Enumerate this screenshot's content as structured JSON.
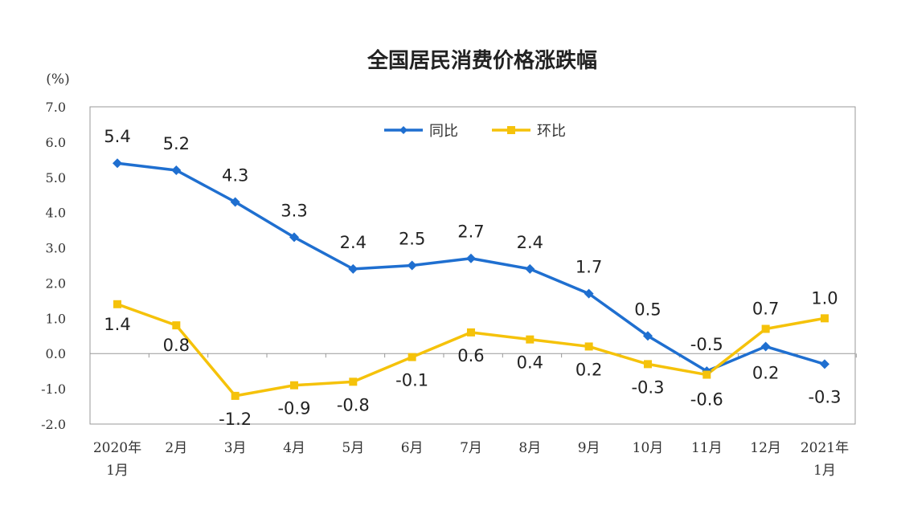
{
  "chart_data": {
    "type": "line",
    "title": "全国居民消费价格涨跌幅",
    "unit": "(%)",
    "ylim": [
      -2.0,
      7.0
    ],
    "yticks": [
      "7.0",
      "6.0",
      "5.0",
      "4.0",
      "3.0",
      "2.0",
      "1.0",
      "0.0",
      "-1.0",
      "-2.0"
    ],
    "categories": [
      [
        "2020年",
        "1月"
      ],
      [
        "2月"
      ],
      [
        "3月"
      ],
      [
        "4月"
      ],
      [
        "5月"
      ],
      [
        "6月"
      ],
      [
        "7月"
      ],
      [
        "8月"
      ],
      [
        "9月"
      ],
      [
        "10月"
      ],
      [
        "11月"
      ],
      [
        "12月"
      ],
      [
        "2021年",
        "1月"
      ]
    ],
    "legend_position": "top-center",
    "grid": false,
    "series": [
      {
        "name": "同比",
        "color": "#1f6fd0",
        "values": [
          5.4,
          5.2,
          4.3,
          3.3,
          2.4,
          2.5,
          2.7,
          2.4,
          1.7,
          0.5,
          -0.5,
          0.2,
          -0.3
        ],
        "labels": [
          "5.4",
          "5.2",
          "4.3",
          "3.3",
          "2.4",
          "2.5",
          "2.7",
          "2.4",
          "1.7",
          "0.5",
          "-0.5",
          "0.2",
          "-0.3"
        ]
      },
      {
        "name": "环比",
        "color": "#f5c20a",
        "values": [
          1.4,
          0.8,
          -1.2,
          -0.9,
          -0.8,
          -0.1,
          0.6,
          0.4,
          0.2,
          -0.3,
          -0.6,
          0.7,
          1.0
        ],
        "labels": [
          "1.4",
          "0.8",
          "-1.2",
          "-0.9",
          "-0.8",
          "-0.1",
          "0.6",
          "0.4",
          "0.2",
          "-0.3",
          "-0.6",
          "0.7",
          "1.0"
        ]
      }
    ]
  }
}
